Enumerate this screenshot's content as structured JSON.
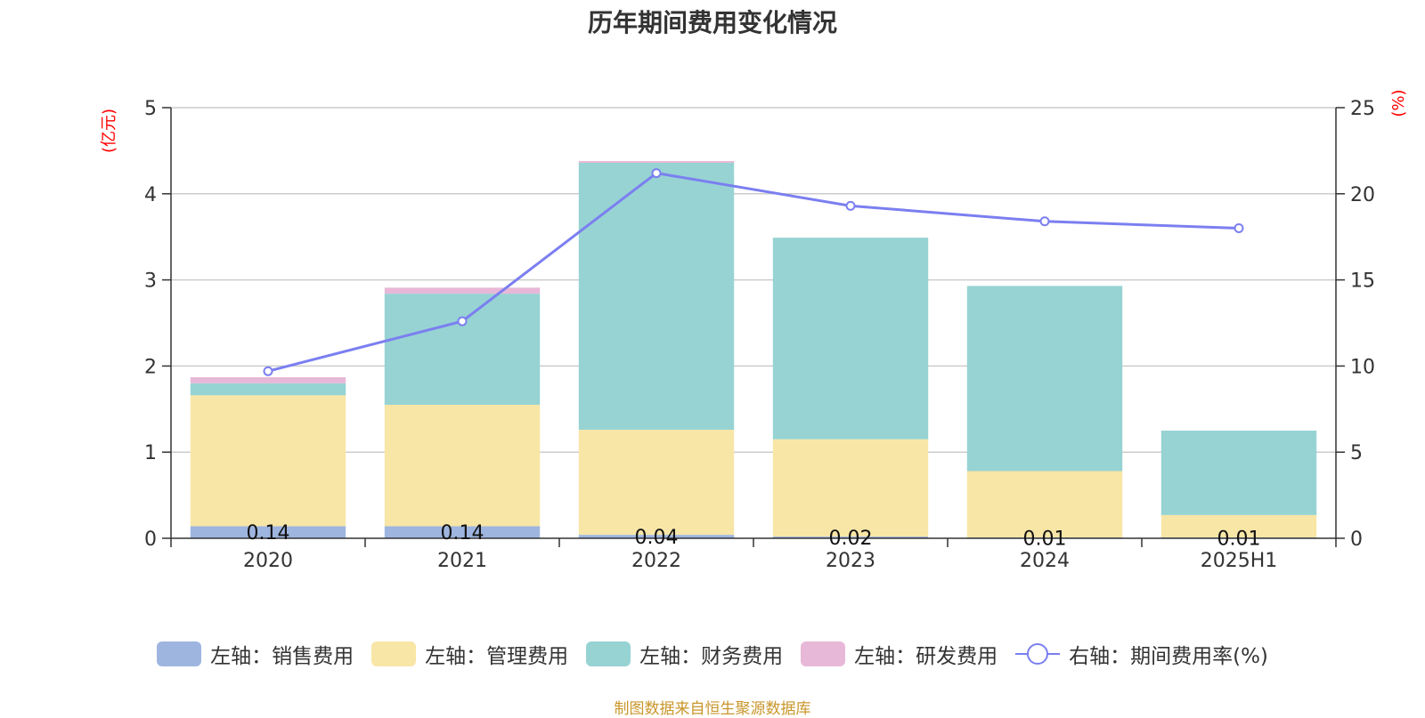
{
  "chart_data": {
    "type": "bar",
    "title": "历年期间费用变化情况",
    "categories": [
      "2020",
      "2021",
      "2022",
      "2023",
      "2024",
      "2025H1"
    ],
    "stacked": true,
    "series": [
      {
        "name": "左轴：销售费用",
        "axis": "left",
        "color": "#9eb5e0",
        "values": [
          0.14,
          0.14,
          0.04,
          0.02,
          0.01,
          0.01
        ],
        "labels": [
          "0.14",
          "0.14",
          "0.04",
          "0.02",
          "0.01",
          "0.01"
        ]
      },
      {
        "name": "左轴：管理费用",
        "axis": "left",
        "color": "#f8e6a6",
        "values": [
          1.52,
          1.41,
          1.22,
          1.13,
          0.77,
          0.26
        ]
      },
      {
        "name": "左轴：财务费用",
        "axis": "left",
        "color": "#97d3d3",
        "values": [
          0.14,
          1.29,
          3.1,
          2.34,
          2.15,
          0.98
        ]
      },
      {
        "name": "左轴：研发费用",
        "axis": "left",
        "color": "#e8b8d8",
        "values": [
          0.07,
          0.07,
          0.02,
          0.0,
          0.0,
          0.0
        ]
      }
    ],
    "line_series": {
      "name": "右轴：期间费用率(%)",
      "axis": "right",
      "color": "#7b7ff0",
      "values": [
        9.7,
        12.6,
        21.2,
        19.3,
        18.4,
        18.0
      ]
    },
    "left_axis": {
      "unit": "(亿元)",
      "ylim": [
        0,
        5
      ],
      "ticks": [
        "0",
        "1",
        "2",
        "3",
        "4",
        "5"
      ]
    },
    "right_axis": {
      "unit": "(%)",
      "ylim": [
        0,
        25
      ],
      "ticks": [
        "0",
        "5",
        "10",
        "15",
        "20",
        "25"
      ]
    },
    "grid": true,
    "legend_position": "bottom"
  },
  "source_note": "制图数据来自恒生聚源数据库"
}
